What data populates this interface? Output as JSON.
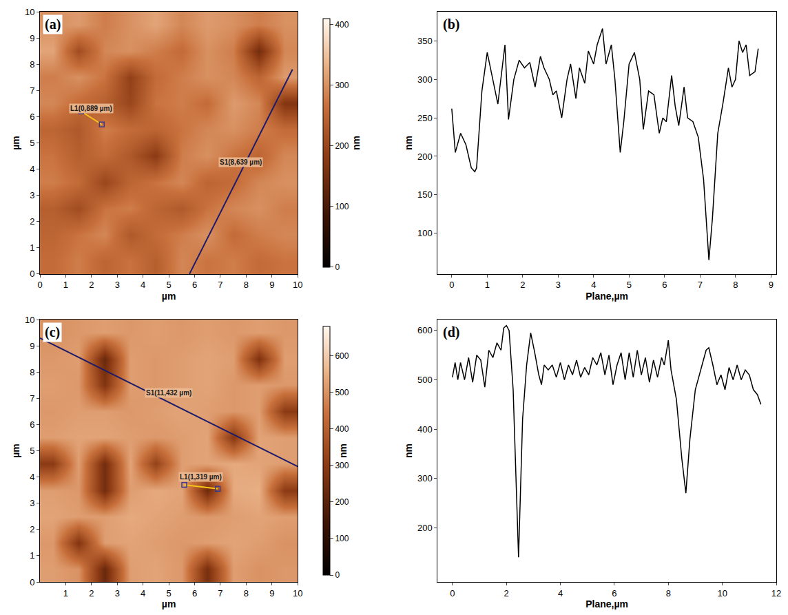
{
  "chart_data": [
    {
      "type": "heatmap",
      "title": "(a)",
      "x": [
        0.5,
        1.5,
        2.5,
        3.5,
        4.5,
        5.5,
        6.5,
        7.5,
        8.5,
        9.5
      ],
      "y": [
        0.5,
        1.5,
        2.5,
        3.5,
        4.5,
        5.5,
        6.5,
        7.5,
        8.5,
        9.5
      ],
      "z": [
        [
          260,
          280,
          250,
          270,
          240,
          290,
          270,
          280,
          260,
          270
        ],
        [
          250,
          270,
          290,
          230,
          260,
          280,
          300,
          260,
          280,
          290
        ],
        [
          240,
          210,
          270,
          280,
          250,
          230,
          270,
          290,
          300,
          280
        ],
        [
          280,
          260,
          200,
          250,
          270,
          290,
          250,
          260,
          290,
          300
        ],
        [
          270,
          240,
          260,
          230,
          180,
          280,
          300,
          270,
          250,
          290
        ],
        [
          250,
          230,
          280,
          260,
          250,
          270,
          290,
          300,
          280,
          260
        ],
        [
          290,
          260,
          240,
          200,
          270,
          280,
          260,
          310,
          290,
          170
        ],
        [
          280,
          300,
          270,
          190,
          260,
          280,
          300,
          290,
          250,
          310
        ],
        [
          320,
          210,
          290,
          300,
          280,
          260,
          300,
          280,
          150,
          290
        ],
        [
          300,
          310,
          280,
          300,
          320,
          290,
          310,
          300,
          280,
          300
        ]
      ],
      "xlim": [
        0,
        10
      ],
      "ylim": [
        0,
        10
      ],
      "xticks": [
        0,
        1,
        2,
        3,
        4,
        5,
        6,
        7,
        8,
        9,
        10
      ],
      "yticks": [
        0,
        1,
        2,
        3,
        4,
        5,
        6,
        7,
        8,
        9,
        10
      ],
      "x_label": "µm",
      "y_label": "µm",
      "colorbar_label": "nm",
      "zlim": [
        0,
        410
      ],
      "zticks": [
        0,
        100,
        200,
        300,
        400
      ],
      "lines": [
        {
          "label": "L1(0,889 µm)",
          "x": [
            1.6,
            2.4
          ],
          "y": [
            6.2,
            5.7
          ],
          "color": "#f5c518",
          "marker": "square-open"
        },
        {
          "label": "S1(8,639 µm)",
          "x": [
            5.8,
            9.8
          ],
          "y": [
            0,
            7.8
          ],
          "color": "#1c1c6b"
        }
      ]
    },
    {
      "type": "line",
      "title": "(b)",
      "x": [
        0,
        0.1,
        0.25,
        0.4,
        0.55,
        0.65,
        0.7,
        0.85,
        1.0,
        1.15,
        1.3,
        1.5,
        1.6,
        1.75,
        1.9,
        2.05,
        2.2,
        2.35,
        2.5,
        2.6,
        2.75,
        2.85,
        2.95,
        3.1,
        3.25,
        3.35,
        3.5,
        3.6,
        3.75,
        3.85,
        4.0,
        4.1,
        4.25,
        4.35,
        4.5,
        4.6,
        4.75,
        4.85,
        5.0,
        5.15,
        5.3,
        5.4,
        5.55,
        5.7,
        5.85,
        5.95,
        6.05,
        6.2,
        6.3,
        6.4,
        6.55,
        6.65,
        6.8,
        6.95,
        7.1,
        7.25,
        7.35,
        7.5,
        7.65,
        7.8,
        7.9,
        8.0,
        8.1,
        8.2,
        8.3,
        8.4,
        8.55,
        8.64
      ],
      "values": [
        262,
        205,
        230,
        215,
        185,
        180,
        185,
        285,
        335,
        300,
        268,
        345,
        248,
        300,
        325,
        315,
        322,
        290,
        330,
        315,
        300,
        280,
        285,
        250,
        300,
        320,
        275,
        315,
        295,
        337,
        320,
        345,
        366,
        320,
        345,
        300,
        205,
        245,
        320,
        335,
        300,
        235,
        285,
        280,
        230,
        250,
        245,
        305,
        265,
        240,
        290,
        250,
        245,
        225,
        170,
        65,
        120,
        230,
        270,
        315,
        290,
        300,
        350,
        335,
        345,
        305,
        310,
        340
      ],
      "color": "#000000",
      "xlim": [
        -0.4,
        9.15
      ],
      "ylim": [
        47,
        388
      ],
      "xticks": [
        0,
        1,
        2,
        3,
        4,
        5,
        6,
        7,
        8,
        9
      ],
      "yticks": [
        100,
        150,
        200,
        250,
        300,
        350
      ],
      "x_label": "Plane,µm",
      "y_label": "nm"
    },
    {
      "type": "heatmap",
      "title": "(c)",
      "x": [
        0.5,
        1.5,
        2.5,
        3.5,
        4.5,
        5.5,
        6.5,
        7.5,
        8.5,
        9.5
      ],
      "y": [
        0.5,
        1.5,
        2.5,
        3.5,
        4.5,
        5.5,
        6.5,
        7.5,
        8.5,
        9.5
      ],
      "z": [
        [
          520,
          500,
          230,
          520,
          530,
          510,
          260,
          520,
          500,
          510
        ],
        [
          510,
          280,
          520,
          530,
          520,
          510,
          520,
          530,
          520,
          500
        ],
        [
          530,
          520,
          520,
          540,
          530,
          520,
          510,
          520,
          530,
          520
        ],
        [
          520,
          510,
          250,
          520,
          540,
          530,
          240,
          540,
          550,
          300
        ],
        [
          300,
          520,
          250,
          530,
          320,
          520,
          530,
          540,
          530,
          520
        ],
        [
          520,
          530,
          530,
          520,
          510,
          520,
          530,
          290,
          530,
          520
        ],
        [
          510,
          520,
          520,
          510,
          520,
          530,
          520,
          510,
          520,
          300
        ],
        [
          520,
          510,
          280,
          520,
          510,
          520,
          530,
          510,
          520,
          510
        ],
        [
          510,
          520,
          230,
          520,
          510,
          520,
          530,
          520,
          270,
          520
        ],
        [
          500,
          510,
          520,
          510,
          520,
          510,
          520,
          510,
          520,
          510
        ]
      ],
      "xlim": [
        0,
        10
      ],
      "ylim": [
        0,
        10
      ],
      "xticks": [
        1,
        2,
        3,
        4,
        5,
        6,
        7,
        8,
        9,
        10
      ],
      "yticks": [
        0,
        1,
        2,
        3,
        4,
        5,
        6,
        7,
        8,
        9,
        10
      ],
      "x_label": "µm",
      "y_label": "µm",
      "colorbar_label": "nm",
      "zlim": [
        0,
        680
      ],
      "zticks": [
        0,
        100,
        200,
        300,
        400,
        500,
        600
      ],
      "lines": [
        {
          "label": "S1(11,432 µm)",
          "x": [
            0,
            10
          ],
          "y": [
            9.3,
            4.4
          ],
          "color": "#1c1c6b"
        },
        {
          "label": "L1(1,319 µm)",
          "x": [
            5.6,
            6.9
          ],
          "y": [
            3.7,
            3.55
          ],
          "color": "#f5c518",
          "marker": "square-open"
        }
      ]
    },
    {
      "type": "line",
      "title": "(d)",
      "x": [
        0,
        0.1,
        0.2,
        0.3,
        0.45,
        0.6,
        0.75,
        0.9,
        1.05,
        1.2,
        1.35,
        1.5,
        1.65,
        1.8,
        1.9,
        2.0,
        2.1,
        2.25,
        2.45,
        2.6,
        2.75,
        2.9,
        3.05,
        3.2,
        3.3,
        3.4,
        3.55,
        3.7,
        3.85,
        4.0,
        4.15,
        4.3,
        4.45,
        4.6,
        4.75,
        4.9,
        5.05,
        5.2,
        5.35,
        5.5,
        5.65,
        5.8,
        5.95,
        6.1,
        6.25,
        6.4,
        6.55,
        6.7,
        6.85,
        7.0,
        7.15,
        7.3,
        7.45,
        7.6,
        7.75,
        7.85,
        8.0,
        8.1,
        8.3,
        8.5,
        8.65,
        8.8,
        9.0,
        9.2,
        9.4,
        9.5,
        9.65,
        9.8,
        9.95,
        10.1,
        10.25,
        10.4,
        10.55,
        10.7,
        10.85,
        11.0,
        11.15,
        11.3,
        11.43
      ],
      "values": [
        505,
        535,
        500,
        535,
        500,
        545,
        495,
        550,
        540,
        485,
        560,
        545,
        575,
        560,
        605,
        610,
        600,
        480,
        140,
        420,
        530,
        595,
        555,
        510,
        490,
        530,
        520,
        530,
        505,
        535,
        500,
        530,
        510,
        540,
        505,
        525,
        510,
        545,
        530,
        555,
        510,
        550,
        490,
        530,
        555,
        500,
        555,
        505,
        560,
        510,
        545,
        495,
        540,
        505,
        545,
        530,
        580,
        520,
        460,
        340,
        270,
        380,
        480,
        520,
        560,
        565,
        530,
        490,
        510,
        480,
        525,
        500,
        530,
        500,
        520,
        510,
        480,
        470,
        450
      ],
      "color": "#000000",
      "xlim": [
        -0.55,
        12
      ],
      "ylim": [
        90,
        622
      ],
      "xticks": [
        0,
        2,
        4,
        6,
        8,
        10,
        12
      ],
      "yticks": [
        200,
        300,
        400,
        500,
        600
      ],
      "x_label": "Plane,µm",
      "y_label": "nm"
    }
  ]
}
